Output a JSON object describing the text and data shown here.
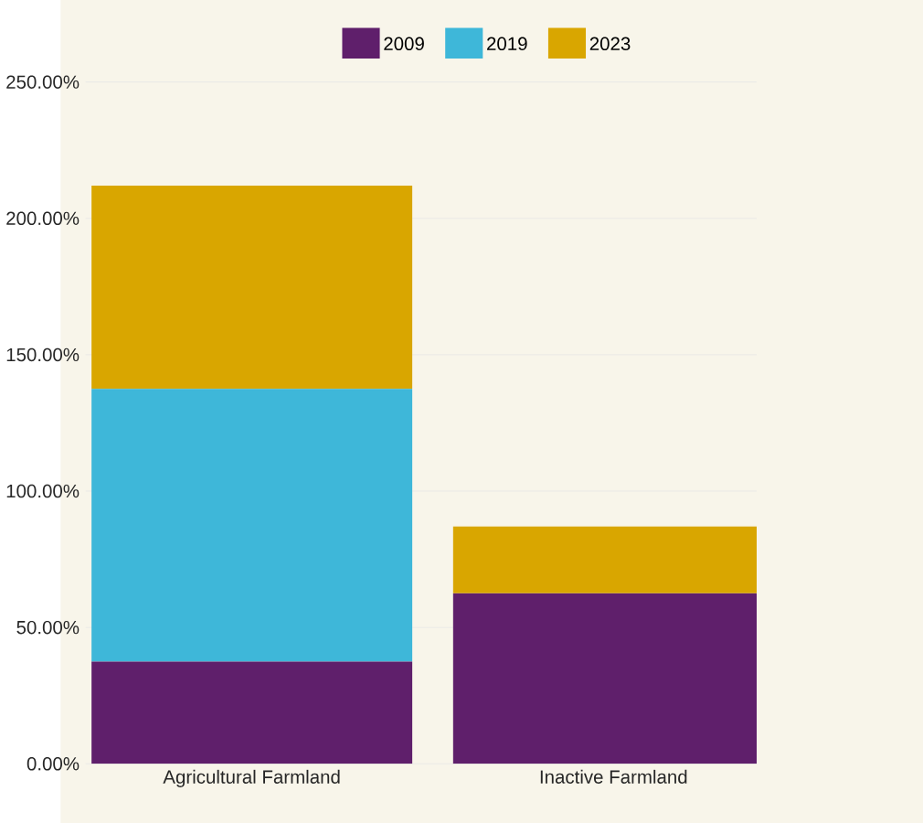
{
  "chart_data": {
    "type": "bar",
    "stacked": true,
    "categories": [
      "Agricultural Farmland",
      "Inactive Farmland"
    ],
    "series": [
      {
        "name": "2009",
        "color": "#5f1f6b",
        "values": [
          37.5,
          62.5
        ]
      },
      {
        "name": "2019",
        "color": "#3eb7d9",
        "values": [
          100,
          0
        ]
      },
      {
        "name": "2023",
        "color": "#d9a600",
        "values": [
          74.5,
          24.5
        ]
      }
    ],
    "ylim": [
      0,
      250
    ],
    "yticks": [
      {
        "value": 0,
        "label": "0.00%"
      },
      {
        "value": 50,
        "label": "50.00%"
      },
      {
        "value": 100,
        "label": "100.00%"
      },
      {
        "value": 150,
        "label": "150.00%"
      },
      {
        "value": 200,
        "label": "200.00%"
      },
      {
        "value": 250,
        "label": "250.00%"
      }
    ],
    "grid": "y",
    "legend": "top"
  }
}
